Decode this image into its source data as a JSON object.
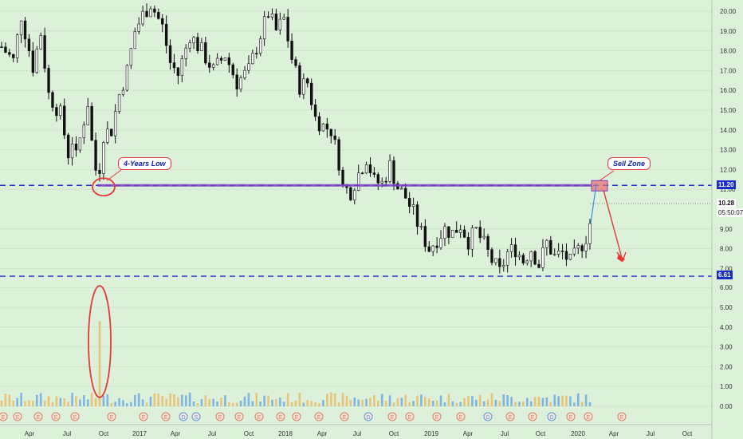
{
  "chart_data": {
    "type": "candlestick",
    "x_ticks": [
      "Apr",
      "Jul",
      "Oct",
      "2017",
      "Apr",
      "Jul",
      "Oct",
      "2018",
      "Apr",
      "Jul",
      "Oct",
      "2019",
      "Apr",
      "Jul",
      "Oct",
      "2020",
      "Apr",
      "Jul",
      "Oct"
    ],
    "price_axis": {
      "ticks": [
        "20.00",
        "19.00",
        "18.00",
        "17.00",
        "16.00",
        "15.00",
        "14.00",
        "13.00",
        "12.00",
        "11.00",
        "9.00",
        "8.00",
        "7.00"
      ],
      "range": [
        6.3,
        20.6
      ]
    },
    "volume_axis": {
      "ticks": [
        "6.00",
        "5.00",
        "4.00",
        "3.00",
        "2.00",
        "1.00",
        "0.00"
      ],
      "range": [
        0,
        6
      ]
    },
    "price_anchors": [
      {
        "t": 0,
        "p": 18.2
      },
      {
        "t": 3,
        "p": 17.5
      },
      {
        "t": 5,
        "p": 19.8
      },
      {
        "t": 8,
        "p": 17.2
      },
      {
        "t": 10,
        "p": 18.9
      },
      {
        "t": 12,
        "p": 15.8
      },
      {
        "t": 15,
        "p": 14.8
      },
      {
        "t": 17,
        "p": 12.8
      },
      {
        "t": 18,
        "p": 13.5
      },
      {
        "t": 19,
        "p": 12.6
      },
      {
        "t": 21,
        "p": 14.5
      },
      {
        "t": 22,
        "p": 15.4
      },
      {
        "t": 23,
        "p": 13.4
      },
      {
        "t": 24.5,
        "p": 11.3
      },
      {
        "t": 26,
        "p": 13.8
      },
      {
        "t": 28,
        "p": 14.0
      },
      {
        "t": 30,
        "p": 15.8
      },
      {
        "t": 32,
        "p": 17.0
      },
      {
        "t": 34,
        "p": 19.0
      },
      {
        "t": 36,
        "p": 19.8
      },
      {
        "t": 38,
        "p": 20.4
      },
      {
        "t": 41,
        "p": 19.2
      },
      {
        "t": 43,
        "p": 17.4
      },
      {
        "t": 45,
        "p": 16.8
      },
      {
        "t": 48,
        "p": 18.8
      },
      {
        "t": 51,
        "p": 18.0
      },
      {
        "t": 54,
        "p": 17.0
      },
      {
        "t": 57,
        "p": 17.8
      },
      {
        "t": 60,
        "p": 16.4
      },
      {
        "t": 63,
        "p": 17.0
      },
      {
        "t": 66,
        "p": 18.8
      },
      {
        "t": 68,
        "p": 19.9
      },
      {
        "t": 70,
        "p": 19.0
      },
      {
        "t": 72,
        "p": 19.6
      },
      {
        "t": 74,
        "p": 17.6
      },
      {
        "t": 76,
        "p": 16.2
      },
      {
        "t": 78,
        "p": 16.4
      },
      {
        "t": 80,
        "p": 14.6
      },
      {
        "t": 82,
        "p": 14.2
      },
      {
        "t": 84,
        "p": 14.0
      },
      {
        "t": 86,
        "p": 12.4
      },
      {
        "t": 87,
        "p": 11.1
      },
      {
        "t": 89,
        "p": 10.9
      },
      {
        "t": 91,
        "p": 11.8
      },
      {
        "t": 93,
        "p": 12.6
      },
      {
        "t": 95,
        "p": 11.4
      },
      {
        "t": 97,
        "p": 11.3
      },
      {
        "t": 99,
        "p": 12.2
      },
      {
        "t": 101,
        "p": 11.1
      },
      {
        "t": 103,
        "p": 10.6
      },
      {
        "t": 105,
        "p": 9.8
      },
      {
        "t": 107,
        "p": 8.8
      },
      {
        "t": 109,
        "p": 8.0
      },
      {
        "t": 111,
        "p": 8.5
      },
      {
        "t": 113,
        "p": 9.0
      },
      {
        "t": 115,
        "p": 8.8
      },
      {
        "t": 117,
        "p": 9.2
      },
      {
        "t": 119,
        "p": 8.4
      },
      {
        "t": 121,
        "p": 8.9
      },
      {
        "t": 123,
        "p": 8.2
      },
      {
        "t": 125,
        "p": 7.4
      },
      {
        "t": 127,
        "p": 6.8
      },
      {
        "t": 129,
        "p": 7.8
      },
      {
        "t": 131,
        "p": 8.0
      },
      {
        "t": 133,
        "p": 7.4
      },
      {
        "t": 135,
        "p": 8.0
      },
      {
        "t": 137,
        "p": 7.2
      },
      {
        "t": 139,
        "p": 8.3
      },
      {
        "t": 141,
        "p": 7.6
      },
      {
        "t": 143,
        "p": 7.8
      },
      {
        "t": 145,
        "p": 7.3
      },
      {
        "t": 147,
        "p": 7.9
      },
      {
        "t": 149,
        "p": 8.6
      },
      {
        "t": 150,
        "p": 9.3
      }
    ],
    "volume_spike": {
      "t": 25,
      "v": 4.3
    },
    "levels": [
      {
        "value": 11.2,
        "label": "11.20",
        "color": "#1a2cc9"
      },
      {
        "value": 6.61,
        "label": "6.61",
        "color": "#1a2cc9"
      }
    ],
    "last_price": {
      "value": 10.28,
      "label": "10.28",
      "countdown": "05:50:07"
    },
    "annotations": [
      {
        "text": "4-Years Low",
        "kind": "callout"
      },
      {
        "text": "Sell Zone",
        "kind": "callout"
      }
    ],
    "earnings_marker": "E",
    "dividend_marker": "D",
    "split_marker": "S",
    "colors": {
      "background": "#dcf0da",
      "candle": "#111111",
      "level_line": "#1a2cc9",
      "resistance_band": "#7b3fc4",
      "annotation": "#e53935",
      "volume_up": "#7fb6e0",
      "volume_down": "#e8c47a"
    }
  }
}
